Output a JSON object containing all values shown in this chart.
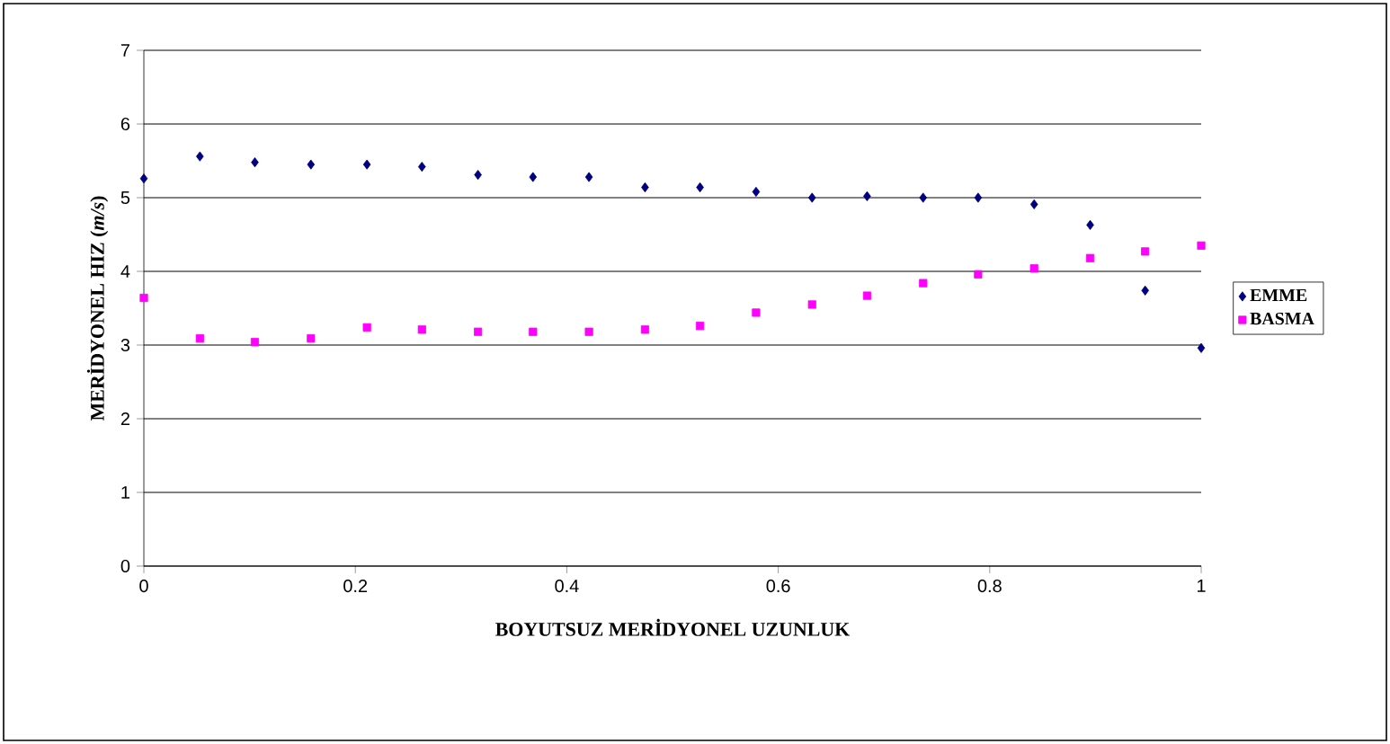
{
  "chart_data": {
    "type": "scatter",
    "xlabel": "BOYUTSUZ MERİDYONEL UZUNLUK",
    "ylabel": "MERİDYONEL HIZ (*m/s*)",
    "x": [
      0,
      0.053,
      0.105,
      0.158,
      0.211,
      0.263,
      0.316,
      0.368,
      0.421,
      0.474,
      0.526,
      0.579,
      0.632,
      0.684,
      0.737,
      0.789,
      0.842,
      0.895,
      0.947,
      1
    ],
    "series": [
      {
        "name": "EMME",
        "color": "#000080",
        "marker": "diamond",
        "values": [
          5.26,
          5.56,
          5.48,
          5.45,
          5.45,
          5.42,
          5.31,
          5.28,
          5.28,
          5.14,
          5.14,
          5.08,
          5.0,
          5.02,
          5.0,
          5.0,
          4.91,
          4.63,
          3.74,
          2.96
        ]
      },
      {
        "name": "BASMA",
        "color": "#ff00ff",
        "marker": "square",
        "values": [
          3.64,
          3.09,
          3.04,
          3.09,
          3.24,
          3.21,
          3.18,
          3.18,
          3.18,
          3.21,
          3.26,
          3.44,
          3.55,
          3.67,
          3.84,
          3.96,
          4.04,
          4.18,
          4.27,
          4.35
        ]
      }
    ],
    "xlim": [
      0,
      1
    ],
    "xticks": [
      0,
      0.2,
      0.4,
      0.6,
      0.8,
      1
    ],
    "ylim": [
      0,
      7
    ],
    "yticks": [
      0,
      1,
      2,
      3,
      4,
      5,
      6,
      7
    ],
    "grid": "y",
    "legend": "right"
  }
}
